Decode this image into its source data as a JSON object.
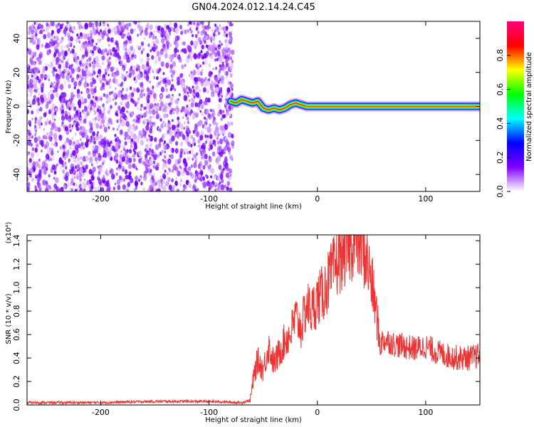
{
  "title": "GN04.2024.012.14.24.C45",
  "chart_data": [
    {
      "type": "heatmap",
      "xlabel": "Height of straight line (km)",
      "ylabel": "Frequency (Hz)",
      "xlim": [
        -268,
        150
      ],
      "ylim": [
        -50,
        50
      ],
      "xticks": [
        -200,
        -100,
        0,
        100
      ],
      "yticks": [
        -40,
        -20,
        0,
        20,
        40
      ],
      "noise_region_x": [
        -268,
        -78
      ],
      "ridge": {
        "x": [
          -80,
          -75,
          -70,
          -65,
          -60,
          -55,
          -50,
          -45,
          -40,
          -35,
          -30,
          -25,
          -20,
          -15,
          -10,
          -5,
          0,
          10,
          20,
          30,
          40,
          60,
          80,
          100,
          120,
          150
        ],
        "freq": [
          3,
          2,
          4,
          3,
          2,
          3,
          -1,
          -2,
          -1,
          -2,
          -1,
          1,
          2,
          1,
          0,
          0,
          0,
          0,
          0,
          0,
          0,
          0,
          0,
          0,
          0,
          0
        ]
      },
      "colorbar": {
        "label": "Normalized spectral amplitude",
        "range": [
          0,
          1
        ],
        "ticks": [
          "0.0",
          "0.2",
          "0.4",
          "0.6",
          "0.8"
        ],
        "colors": [
          "#ffffff",
          "#8000ff",
          "#0000ff",
          "#00ffff",
          "#00ff00",
          "#ffff00",
          "#ff0000",
          "#ff007f"
        ]
      }
    },
    {
      "type": "line",
      "xlabel": "Height of straight line (km)",
      "ylabel": "SNR (10 * v/v)",
      "scale_label": "(x10⁴)",
      "xlim": [
        -268,
        150
      ],
      "ylim": [
        0,
        1.45
      ],
      "xticks": [
        -200,
        -100,
        0,
        100
      ],
      "yticks": [
        0.0,
        0.2,
        0.4,
        0.6,
        0.8,
        1.0,
        1.2,
        1.4
      ],
      "color": "#ee3333",
      "series": [
        {
          "x": [
            -268,
            -200,
            -150,
            -100,
            -70,
            -62,
            -58,
            -55,
            -50,
            -45,
            -40,
            -35,
            -30,
            -25,
            -20,
            -15,
            -10,
            -5,
            0,
            5,
            10,
            15,
            20,
            25,
            30,
            35,
            40,
            45,
            50,
            55,
            58,
            60,
            65,
            70,
            80,
            90,
            100,
            110,
            120,
            130,
            140,
            150
          ],
          "values": [
            0.02,
            0.02,
            0.03,
            0.03,
            0.02,
            0.04,
            0.28,
            0.38,
            0.3,
            0.5,
            0.35,
            0.45,
            0.55,
            0.6,
            0.75,
            0.65,
            0.85,
            0.8,
            0.9,
            0.95,
            1.05,
            1.15,
            1.25,
            1.32,
            1.38,
            1.42,
            1.38,
            1.25,
            1.05,
            0.75,
            0.5,
            0.55,
            0.55,
            0.52,
            0.5,
            0.48,
            0.5,
            0.45,
            0.42,
            0.4,
            0.4,
            0.42
          ]
        }
      ]
    }
  ]
}
